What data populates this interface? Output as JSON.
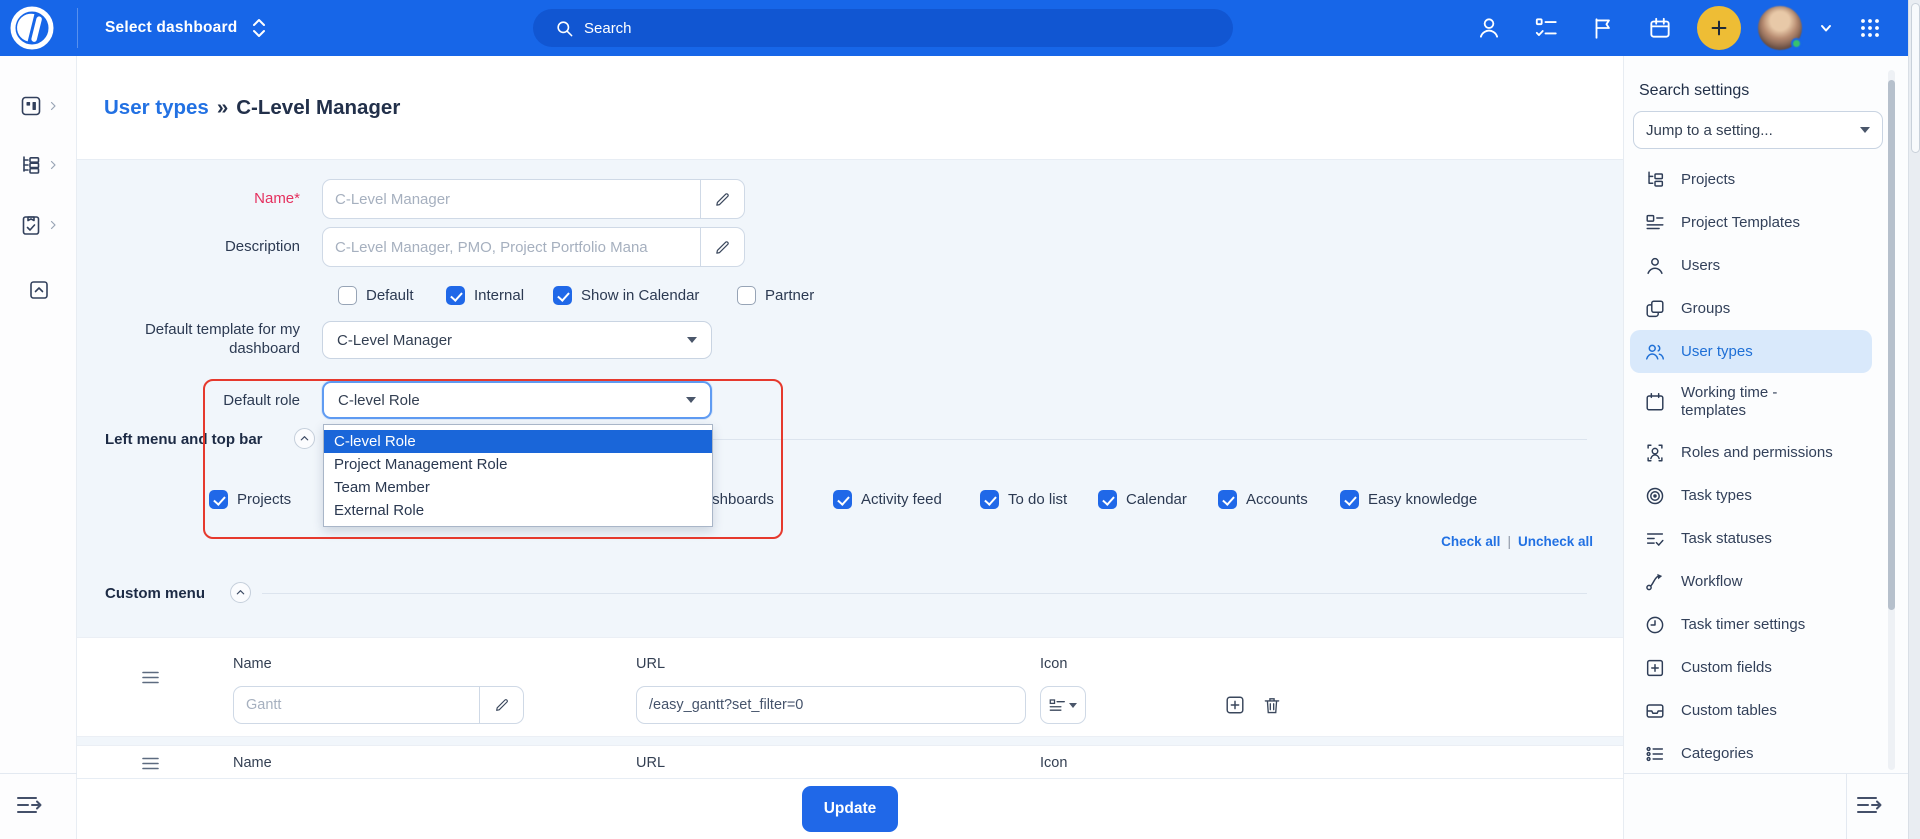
{
  "topbar": {
    "dashboard_selector": "Select dashboard",
    "search_placeholder": "Search"
  },
  "breadcrumb": {
    "parent": "User types",
    "separator": "»",
    "current": "C-Level Manager"
  },
  "form": {
    "name_label": "Name*",
    "name_value": "C-Level Manager",
    "description_label": "Description",
    "description_value": "C-Level Manager, PMO, Project Portfolio Mana",
    "flags": [
      {
        "label": "Default",
        "checked": false
      },
      {
        "label": "Internal",
        "checked": true
      },
      {
        "label": "Show in Calendar",
        "checked": true
      },
      {
        "label": "Partner",
        "checked": false
      }
    ],
    "template_label": "Default template for my dashboard",
    "template_value": "C-Level Manager",
    "role_label": "Default role",
    "role_value": "C-level Role",
    "role_options": [
      "C-level Role",
      "Project Management Role",
      "Team Member",
      "External Role"
    ],
    "role_selected": "C-level Role",
    "left_menu_title": "Left menu and top bar",
    "menu_items": [
      {
        "label": "Projects",
        "checked": true
      },
      {
        "label": "Dashboards",
        "checked": true
      },
      {
        "label": "Activity feed",
        "checked": true
      },
      {
        "label": "To do list",
        "checked": true
      },
      {
        "label": "Calendar",
        "checked": true
      },
      {
        "label": "Accounts",
        "checked": true
      },
      {
        "label": "Easy knowledge",
        "checked": true
      }
    ],
    "check_all": "Check all",
    "links_separator": "|",
    "uncheck_all": "Uncheck all",
    "custom_menu_title": "Custom menu",
    "custom_rows": [
      {
        "name_label": "Name",
        "name_placeholder": "Gantt",
        "url_label": "URL",
        "url_value": "/easy_gantt?set_filter=0",
        "icon_label": "Icon"
      },
      {
        "name_label": "Name",
        "url_label": "URL",
        "icon_label": "Icon"
      }
    ],
    "update_button": "Update"
  },
  "settings_sidebar": {
    "title": "Search settings",
    "jump_select": "Jump to a setting...",
    "items": [
      {
        "label": "Projects",
        "icon": "projects-tree-icon",
        "active": false
      },
      {
        "label": "Project Templates",
        "icon": "project-templates-icon",
        "active": false
      },
      {
        "label": "Users",
        "icon": "user-icon",
        "active": false
      },
      {
        "label": "Groups",
        "icon": "groups-icon",
        "active": false
      },
      {
        "label": "User types",
        "icon": "user-types-icon",
        "active": true
      },
      {
        "label": "Working time - templates",
        "icon": "working-time-calendar-icon",
        "active": false
      },
      {
        "label": "Roles and permissions",
        "icon": "roles-permissions-icon",
        "active": false
      },
      {
        "label": "Task types",
        "icon": "task-types-target-icon",
        "active": false
      },
      {
        "label": "Task statuses",
        "icon": "task-statuses-icon",
        "active": false
      },
      {
        "label": "Workflow",
        "icon": "workflow-icon",
        "active": false
      },
      {
        "label": "Task timer settings",
        "icon": "task-timer-clock-icon",
        "active": false
      },
      {
        "label": "Custom fields",
        "icon": "custom-fields-icon",
        "active": false
      },
      {
        "label": "Custom tables",
        "icon": "custom-tables-icon",
        "active": false
      },
      {
        "label": "Categories",
        "icon": "categories-icon",
        "active": false
      }
    ]
  },
  "colors": {
    "topbar_blue": "#1766e8",
    "search_pill_blue": "#1156d2",
    "accent_blue": "#2068e8",
    "selected_option_blue": "#1a66d9",
    "annotation_red": "#e6392d",
    "active_item_bg": "#d9e9fb",
    "add_button_yellow": "#eebd35",
    "online_green": "#37c26e"
  }
}
